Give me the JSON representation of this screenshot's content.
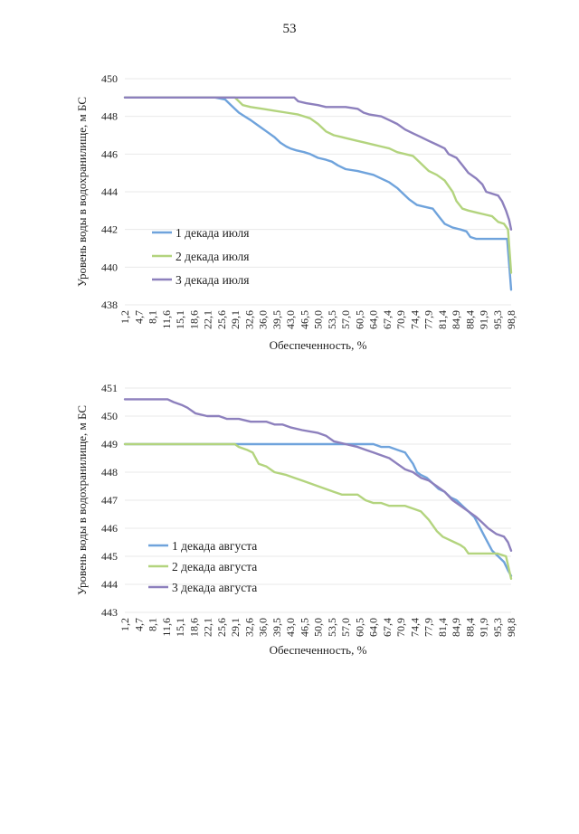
{
  "page_number": "53",
  "colors": {
    "series1": "#6fa3dc",
    "series2": "#b3d47e",
    "series3": "#8d80bd",
    "grid": "#e9e9e9"
  },
  "chart_data": [
    {
      "type": "line",
      "title": "",
      "xlabel": "Обеспеченность, %",
      "ylabel": "Уровень воды в водохранилище, м БС",
      "ylim": [
        438,
        450
      ],
      "yticks": [
        "438",
        "440",
        "442",
        "444",
        "446",
        "448",
        "450"
      ],
      "xlim": [
        1.2,
        98.8
      ],
      "xticks": [
        "1,2",
        "4,7",
        "8,1",
        "11,6",
        "15,1",
        "18,6",
        "22,1",
        "25,6",
        "29,1",
        "32,6",
        "36,0",
        "39,5",
        "43,0",
        "46,5",
        "50,0",
        "53,5",
        "57,0",
        "60,5",
        "64,0",
        "67,4",
        "70,9",
        "74,4",
        "77,9",
        "81,4",
        "84,9",
        "88,4",
        "91,9",
        "95,3",
        "98,8"
      ],
      "legend_position": "center-left",
      "series": [
        {
          "name": "1 декада июля",
          "x": [
            1.2,
            22.0,
            24.0,
            26.5,
            28.0,
            30.0,
            31.5,
            33.0,
            35.0,
            37.0,
            39.0,
            40.5,
            42.0,
            43.0,
            44.5,
            46.5,
            48.0,
            50.0,
            52.0,
            53.5,
            55.0,
            57.0,
            60.0,
            62.0,
            64.0,
            66.0,
            68.0,
            70.0,
            71.5,
            73.0,
            75.0,
            77.0,
            79.0,
            80.5,
            82.0,
            84.0,
            86.0,
            87.5,
            88.5,
            90.0,
            95.3,
            97.8,
            98.8
          ],
          "values": [
            449.0,
            449.0,
            449.0,
            448.9,
            448.6,
            448.2,
            448.0,
            447.8,
            447.5,
            447.2,
            446.9,
            446.6,
            446.4,
            446.3,
            446.2,
            446.1,
            446.0,
            445.8,
            445.7,
            445.6,
            445.4,
            445.2,
            445.1,
            445.0,
            444.9,
            444.7,
            444.5,
            444.2,
            443.9,
            443.6,
            443.3,
            443.2,
            443.1,
            442.7,
            442.3,
            442.1,
            442.0,
            441.9,
            441.6,
            441.5,
            441.5,
            441.5,
            438.8
          ]
        },
        {
          "name": "2 декада июля",
          "x": [
            1.2,
            29.0,
            31.0,
            33.0,
            36.0,
            39.0,
            42.0,
            45.0,
            48.0,
            50.0,
            52.0,
            54.0,
            56.0,
            58.0,
            60.0,
            62.0,
            64.0,
            66.0,
            68.0,
            70.0,
            72.0,
            74.0,
            76.0,
            78.0,
            80.0,
            82.0,
            84.0,
            85.0,
            86.5,
            88.0,
            90.0,
            92.0,
            94.0,
            95.5,
            97.0,
            98.0,
            98.8
          ],
          "values": [
            449.0,
            449.0,
            448.6,
            448.5,
            448.4,
            448.3,
            448.2,
            448.1,
            447.9,
            447.6,
            447.2,
            447.0,
            446.9,
            446.8,
            446.7,
            446.6,
            446.5,
            446.4,
            446.3,
            446.1,
            446.0,
            445.9,
            445.5,
            445.1,
            444.9,
            444.6,
            444.0,
            443.5,
            443.1,
            443.0,
            442.9,
            442.8,
            442.7,
            442.4,
            442.3,
            442.0,
            439.7
          ]
        },
        {
          "name": "3 декада июля",
          "x": [
            1.2,
            44.0,
            45.0,
            47.0,
            50.0,
            52.0,
            54.0,
            57.0,
            60.0,
            61.5,
            63.0,
            66.0,
            68.0,
            70.0,
            72.0,
            74.0,
            76.0,
            78.0,
            80.0,
            82.0,
            83.0,
            85.0,
            86.5,
            88.0,
            90.0,
            91.5,
            92.5,
            94.0,
            95.5,
            96.5,
            97.5,
            98.3,
            98.8
          ],
          "values": [
            449.0,
            449.0,
            448.8,
            448.7,
            448.6,
            448.5,
            448.5,
            448.5,
            448.4,
            448.2,
            448.1,
            448.0,
            447.8,
            447.6,
            447.3,
            447.1,
            446.9,
            446.7,
            446.5,
            446.3,
            446.0,
            445.8,
            445.4,
            445.0,
            444.7,
            444.4,
            444.0,
            443.9,
            443.8,
            443.5,
            443.0,
            442.5,
            442.0
          ]
        }
      ]
    },
    {
      "type": "line",
      "title": "",
      "xlabel": "Обеспеченность, %",
      "ylabel": "Уровень воды в водохранилище, м БС",
      "ylim": [
        443,
        451
      ],
      "yticks": [
        "443",
        "444",
        "445",
        "446",
        "447",
        "448",
        "449",
        "450",
        "451"
      ],
      "xlim": [
        1.2,
        98.8
      ],
      "xticks": [
        "1,2",
        "4,7",
        "8,1",
        "11,6",
        "15,1",
        "18,6",
        "22,1",
        "25,6",
        "29,1",
        "32,6",
        "36,0",
        "39,5",
        "43,0",
        "46,5",
        "50,0",
        "53,5",
        "57,0",
        "60,5",
        "64,0",
        "67,4",
        "70,9",
        "74,4",
        "77,9",
        "81,4",
        "84,9",
        "88,4",
        "91,9",
        "95,3",
        "98,8"
      ],
      "legend_position": "bottom-left",
      "series": [
        {
          "name": "1 декада августа",
          "x": [
            1.2,
            60.0,
            62.0,
            64.0,
            66.0,
            68.0,
            70.0,
            72.0,
            73.0,
            74.0,
            75.0,
            76.0,
            77.5,
            79.0,
            80.5,
            82.0,
            83.5,
            85.0,
            86.5,
            88.0,
            89.5,
            91.0,
            92.5,
            94.0,
            95.5,
            97.0,
            98.0,
            98.8
          ],
          "values": [
            449.0,
            449.0,
            449.0,
            449.0,
            448.9,
            448.9,
            448.8,
            448.7,
            448.5,
            448.3,
            448.0,
            447.9,
            447.8,
            447.6,
            447.4,
            447.3,
            447.1,
            447.0,
            446.8,
            446.6,
            446.4,
            446.0,
            445.6,
            445.2,
            445.0,
            444.8,
            444.5,
            444.3
          ]
        },
        {
          "name": "2 декада августа",
          "x": [
            1.2,
            29.0,
            30.0,
            32.0,
            33.5,
            35.0,
            37.0,
            39.0,
            42.0,
            44.0,
            46.0,
            48.0,
            50.0,
            52.0,
            54.0,
            56.0,
            58.0,
            60.0,
            62.0,
            64.0,
            66.0,
            68.0,
            70.0,
            72.0,
            74.0,
            76.0,
            78.0,
            80.0,
            81.5,
            83.0,
            84.5,
            86.0,
            87.0,
            88.0,
            95.3,
            97.5,
            98.8
          ],
          "values": [
            449.0,
            449.0,
            448.9,
            448.8,
            448.7,
            448.3,
            448.2,
            448.0,
            447.9,
            447.8,
            447.7,
            447.6,
            447.5,
            447.4,
            447.3,
            447.2,
            447.2,
            447.2,
            447.0,
            446.9,
            446.9,
            446.8,
            446.8,
            446.8,
            446.7,
            446.6,
            446.3,
            445.9,
            445.7,
            445.6,
            445.5,
            445.4,
            445.3,
            445.1,
            445.1,
            445.0,
            444.2
          ]
        },
        {
          "name": "3 декада августа",
          "x": [
            1.2,
            12.0,
            13.5,
            15.5,
            17.0,
            19.0,
            22.0,
            25.0,
            27.0,
            30.0,
            33.0,
            37.0,
            39.0,
            41.0,
            43.0,
            46.0,
            50.0,
            52.0,
            54.0,
            57.0,
            60.0,
            62.0,
            64.0,
            66.0,
            68.0,
            70.0,
            72.0,
            74.0,
            76.0,
            78.0,
            80.0,
            82.0,
            84.0,
            86.0,
            88.0,
            90.0,
            91.5,
            93.0,
            95.0,
            97.0,
            98.0,
            98.8
          ],
          "values": [
            450.6,
            450.6,
            450.5,
            450.4,
            450.3,
            450.1,
            450.0,
            450.0,
            449.9,
            449.9,
            449.8,
            449.8,
            449.7,
            449.7,
            449.6,
            449.5,
            449.4,
            449.3,
            449.1,
            449.0,
            448.9,
            448.8,
            448.7,
            448.6,
            448.5,
            448.3,
            448.1,
            448.0,
            447.8,
            447.7,
            447.5,
            447.3,
            447.0,
            446.8,
            446.6,
            446.4,
            446.2,
            446.0,
            445.8,
            445.7,
            445.5,
            445.2
          ]
        }
      ]
    }
  ]
}
